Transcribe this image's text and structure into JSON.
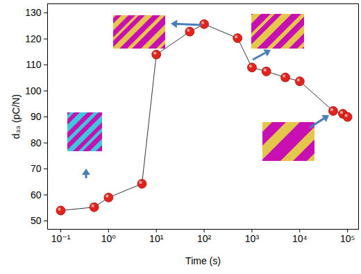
{
  "chart_data": {
    "type": "line",
    "x": [
      0.1,
      0.5,
      1,
      5,
      10,
      50,
      100,
      500,
      1000,
      2000,
      5000,
      10000,
      50000,
      80000,
      100000
    ],
    "values": [
      54,
      55.3,
      59,
      64.3,
      114,
      122.8,
      125.7,
      120.3,
      109,
      107.5,
      105.2,
      103.7,
      92.3,
      91.2,
      90
    ],
    "xlabel": "Time (s)",
    "ylabel": "d₃₃ (pC/N)",
    "log": "x",
    "xlim": [
      0.053,
      170000
    ],
    "xticks": [
      {
        "value": 0.1,
        "label": "10⁻¹"
      },
      {
        "value": 1,
        "label": "10⁰"
      },
      {
        "value": 10,
        "label": "10¹"
      },
      {
        "value": 100,
        "label": "10²"
      },
      {
        "value": 1000,
        "label": "10³"
      },
      {
        "value": 10000,
        "label": "10⁴"
      },
      {
        "value": 100000,
        "label": "10⁵"
      }
    ],
    "ylim": [
      46.8,
      133.5
    ],
    "yticks": [
      50,
      60,
      70,
      80,
      90,
      100,
      110,
      120,
      130
    ],
    "color": "#e3221b",
    "marker": "circle",
    "line_style": "solid",
    "grid": false
  }
}
